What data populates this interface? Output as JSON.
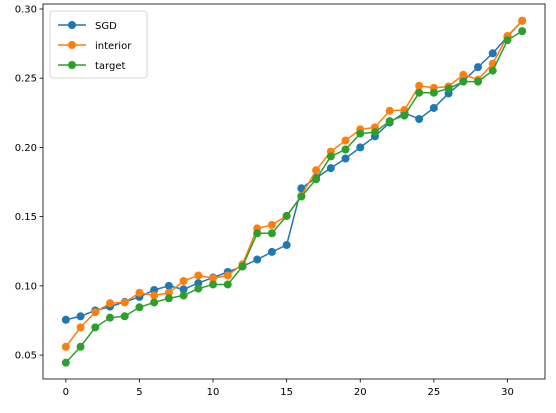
{
  "chart_data": {
    "type": "line",
    "title": "",
    "xlabel": "",
    "ylabel": "",
    "xlim": [
      -1.55,
      32.55
    ],
    "ylim": [
      0.0327,
      0.3036
    ],
    "x_ticks": [
      0,
      5,
      10,
      15,
      20,
      25,
      30
    ],
    "y_ticks": [
      0.05,
      0.1,
      0.15,
      0.2,
      0.25,
      0.3
    ],
    "grid": false,
    "legend_position": "top-left",
    "x": [
      0,
      1,
      2,
      3,
      4,
      5,
      6,
      7,
      8,
      9,
      10,
      11,
      12,
      13,
      14,
      15,
      16,
      17,
      18,
      19,
      20,
      21,
      22,
      23,
      24,
      25,
      26,
      27,
      28,
      29,
      30,
      31
    ],
    "series": [
      {
        "name": "SGD",
        "color": "#1f77b4",
        "values": [
          0.0755,
          0.078,
          0.0822,
          0.085,
          0.0884,
          0.092,
          0.097,
          0.1,
          0.0975,
          0.102,
          0.106,
          0.11,
          0.114,
          0.119,
          0.1245,
          0.1295,
          0.1705,
          0.178,
          0.185,
          0.192,
          0.2,
          0.208,
          0.218,
          0.225,
          0.2205,
          0.2285,
          0.239,
          0.248,
          0.258,
          0.268,
          0.28,
          0.2915
        ]
      },
      {
        "name": "interior",
        "color": "#ff7f0e",
        "values": [
          0.056,
          0.07,
          0.081,
          0.0875,
          0.088,
          0.095,
          0.093,
          0.095,
          0.1035,
          0.1075,
          0.1055,
          0.1075,
          0.1155,
          0.1415,
          0.144,
          0.1505,
          0.165,
          0.1835,
          0.197,
          0.205,
          0.213,
          0.2145,
          0.2265,
          0.227,
          0.2445,
          0.243,
          0.244,
          0.2525,
          0.249,
          0.2605,
          0.2805,
          0.2915
        ]
      },
      {
        "name": "target",
        "color": "#2ca02c",
        "values": [
          0.0445,
          0.056,
          0.07,
          0.077,
          0.078,
          0.0845,
          0.088,
          0.091,
          0.093,
          0.098,
          0.101,
          0.101,
          0.114,
          0.138,
          0.138,
          0.1505,
          0.1645,
          0.177,
          0.1935,
          0.1985,
          0.21,
          0.211,
          0.219,
          0.223,
          0.2395,
          0.2395,
          0.2425,
          0.2475,
          0.2475,
          0.2555,
          0.2775,
          0.284
        ]
      }
    ]
  }
}
